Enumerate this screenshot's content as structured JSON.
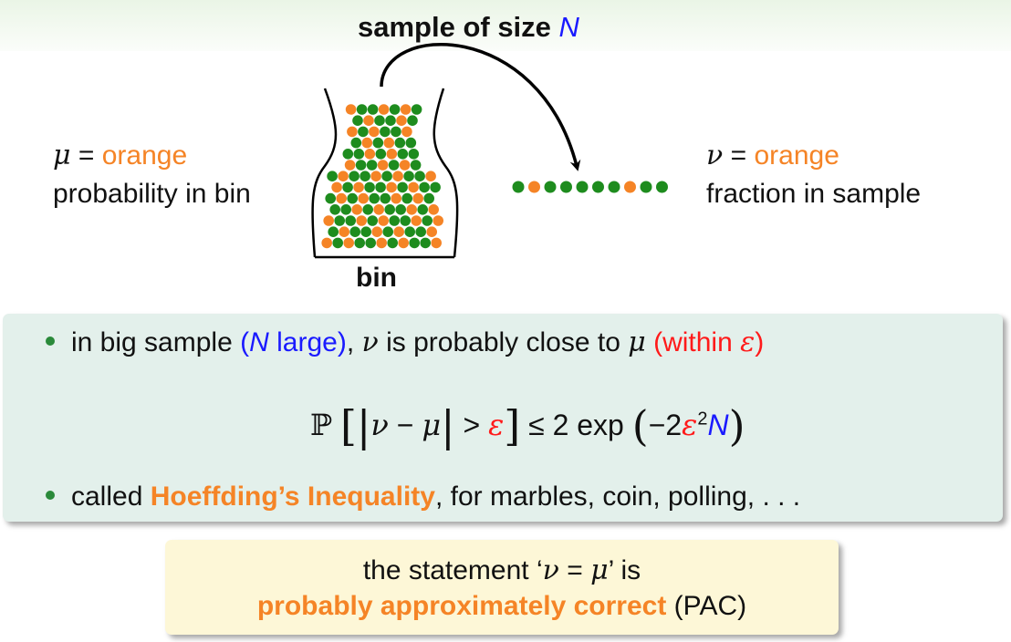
{
  "header": {
    "title_prefix": "sample of size",
    "title_var": "N"
  },
  "left": {
    "var": "μ",
    "eq": "=",
    "color_word": "orange",
    "line2": "probability in bin"
  },
  "right": {
    "var": "ν",
    "eq": "=",
    "color_word": "orange",
    "line2": "fraction in sample"
  },
  "bin": {
    "label": "bin"
  },
  "sample_marbles": [
    "green",
    "orange",
    "green",
    "green",
    "green",
    "green",
    "green",
    "orange",
    "green",
    "green"
  ],
  "colors": {
    "orange": "#f58426",
    "green": "#1e8c1e",
    "blue": "#1a1aff",
    "red": "#ff1a1a",
    "bullet": "#2a8a3a"
  },
  "box1": {
    "b1_pre": "in big sample ",
    "b1_paren": "(N large)",
    "b1_mid1": ", ",
    "b1_nu": "ν",
    "b1_mid2": " is probably close to ",
    "b1_mu": "μ",
    "b1_within": "(within ε)",
    "formula": {
      "P": "ℙ",
      "lbr": "[",
      "abs1": "|",
      "nu": "ν",
      "minus": " − ",
      "mu": "μ",
      "abs2": "|",
      "gt": " > ",
      "eps": "ε",
      "rbr": "]",
      "le": " ≤ ",
      "rhs1": "2 exp",
      "lparen": "(",
      "neg2": "−2",
      "eps2": "ε",
      "sq": "2",
      "N": "N",
      "rparen": ")"
    },
    "b2_pre": "called ",
    "b2_hoeff": "Hoeffding’s Inequality",
    "b2_post": ", for marbles, coin, polling, . . ."
  },
  "box2": {
    "l1_pre": "the statement ‘",
    "l1_nu": "ν",
    "l1_eq": " = ",
    "l1_mu": "μ",
    "l1_post": "’ is",
    "l2_bold": "probably approximately correct",
    "l2_post": " (PAC)"
  }
}
